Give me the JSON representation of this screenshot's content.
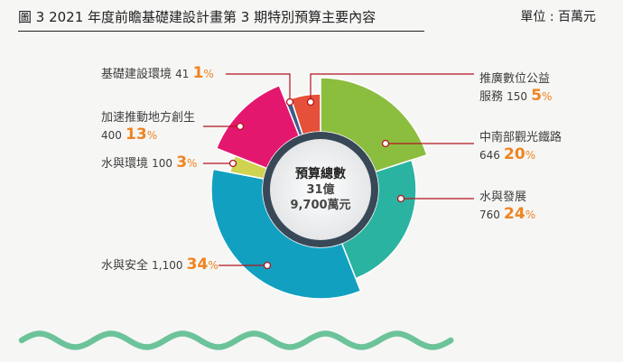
{
  "header": {
    "title": "圖 3   2021 年度前瞻基礎建設計畫第 3 期特別預算主要內容",
    "unit": "單位 : 百萬元"
  },
  "chart_data": {
    "type": "pie",
    "variant": "donut with varying slice radii",
    "title": "圖 3   2021 年度前瞻基礎建設計畫第 3 期特別預算主要內容",
    "unit": "單位 : 百萬元",
    "center": {
      "line1": "預算總數",
      "line2": "31億",
      "line3": "9,700萬元"
    },
    "slices": [
      {
        "name": "中南部觀光鐵路",
        "value": 646,
        "percent": 20,
        "color": "#8bbd3f"
      },
      {
        "name": "水與發展",
        "value": 760,
        "percent": 24,
        "color": "#2ab3a1"
      },
      {
        "name": "水與安全",
        "value": 1100,
        "value_label": "1,100",
        "percent": 34,
        "color": "#12a0c0"
      },
      {
        "name": "水與環境",
        "value": 100,
        "percent": 3,
        "color": "#cfd350"
      },
      {
        "name": "加速推動地方創生",
        "value": 400,
        "percent": 13,
        "color": "#e4176f"
      },
      {
        "name": "基礎建設環境",
        "value": 41,
        "percent": 1,
        "color": "#3b5d88"
      },
      {
        "name": "推廣數位公益服務",
        "name_line1": "推廣數位公益",
        "name_line2": "服務",
        "value": 150,
        "percent": 5,
        "color": "#e5503a"
      }
    ],
    "percent_sign": "%"
  },
  "colors": {
    "leader": "#b3141e",
    "percent": "#ef8420",
    "ring": "#384857",
    "wave": "#6cc39a"
  }
}
